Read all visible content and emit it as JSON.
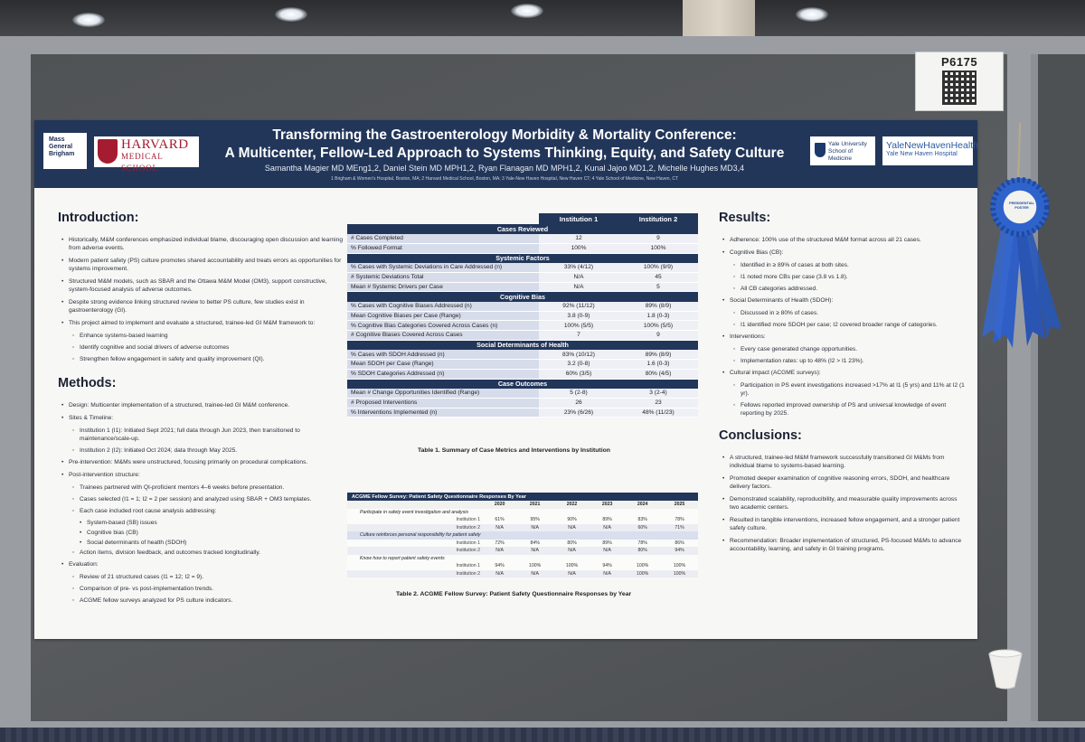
{
  "poster_number": "P6175",
  "logos": {
    "mgb": [
      "Mass",
      "General",
      "Brigham"
    ],
    "harvard_line1": "HARVARD",
    "harvard_line2": "MEDICAL SCHOOL",
    "yale_line1": "Yale University",
    "yale_line2": "School of Medicine",
    "ynhh_line1": "YaleNewHavenHealth",
    "ynhh_line2": "Yale New Haven Hospital"
  },
  "title_line1": "Transforming the Gastroenterology Morbidity & Mortality Conference:",
  "title_line2": "A Multicenter, Fellow-Led Approach to Systems Thinking, Equity, and Safety Culture",
  "authors": "Samantha Magier MD MEng1,2, Daniel Stein MD MPH1,2, Ryan Flanagan MD MPH1,2, Kunal Jajoo MD1,2, Michelle Hughes MD3,4",
  "affiliations": "1 Brigham & Women's Hospital, Boston, MA; 2 Harvard Medical School, Boston, MA; 3 Yale-New Haven Hospital, New Haven CT; 4 Yale School of Medicine, New Haven, CT",
  "introduction": {
    "heading": "Introduction:",
    "items": [
      {
        "level": 1,
        "text": "Historically, M&M conferences emphasized individual blame, discouraging open discussion and learning from adverse events."
      },
      {
        "level": 1,
        "text": "Modern patient safety (PS) culture promotes shared accountability and treats errors as opportunities for systems improvement."
      },
      {
        "level": 1,
        "text": "Structured M&M models, such as SBAR and the Ottawa M&M Model (OM3), support constructive, system-focused analysis of adverse outcomes."
      },
      {
        "level": 1,
        "text": "Despite strong evidence linking structured review to better PS culture, few studies exist in gastroenterology (GI)."
      },
      {
        "level": 1,
        "text": "This project aimed to implement and evaluate a structured, trainee-led GI M&M framework to:"
      },
      {
        "level": 2,
        "text": "Enhance systems-based learning"
      },
      {
        "level": 2,
        "text": "Identify cognitive and social drivers of adverse outcomes"
      },
      {
        "level": 2,
        "text": "Strengthen fellow engagement in safety and quality improvement (QI)."
      }
    ]
  },
  "methods": {
    "heading": "Methods:",
    "items": [
      {
        "level": 1,
        "text": "Design: Multicenter implementation of a structured, trainee-led GI M&M conference."
      },
      {
        "level": 1,
        "text": "Sites & Timeline:"
      },
      {
        "level": 2,
        "text": "Institution 1 (I1): Initiated Sept 2021; full data through Jun 2023, then transitioned to maintenance/scale-up."
      },
      {
        "level": 2,
        "text": "Institution 2 (I2): Initiated Oct 2024; data through May 2025."
      },
      {
        "level": 1,
        "text": "Pre-intervention: M&Ms were unstructured, focusing primarily on procedural complications."
      },
      {
        "level": 1,
        "text": "Post-intervention structure:"
      },
      {
        "level": 2,
        "text": "Trainees partnered with QI-proficient mentors 4–6 weeks before presentation."
      },
      {
        "level": 2,
        "text": "Cases selected (I1 = 1; I2 = 2 per session) and analyzed using SBAR + OM3 templates."
      },
      {
        "level": 2,
        "text": "Each case included root cause analysis addressing:"
      },
      {
        "level": 3,
        "text": "System-based (SB) issues"
      },
      {
        "level": 3,
        "text": "Cognitive bias (CB)"
      },
      {
        "level": 3,
        "text": "Social determinants of health (SDOH)"
      },
      {
        "level": 2,
        "text": "Action items, division feedback, and outcomes tracked longitudinally."
      },
      {
        "level": 1,
        "text": "Evaluation:"
      },
      {
        "level": 2,
        "text": "Review of 21 structured cases (I1 = 12; I2 = 9)."
      },
      {
        "level": 2,
        "text": "Comparison of pre- vs post-implementation trends."
      },
      {
        "level": 2,
        "text": "ACGME fellow surveys analyzed for PS culture indicators."
      }
    ]
  },
  "table1": {
    "col1": "Institution 1",
    "col2": "Institution 2",
    "caption": "Table 1.  Summary of Case Metrics and Interventions by Institution",
    "sections": [
      {
        "title": "Cases Reviewed",
        "rows": [
          [
            "# Cases Completed",
            "12",
            "9"
          ],
          [
            "% Followed Format",
            "100%",
            "100%"
          ]
        ]
      },
      {
        "title": "Systemic Factors",
        "rows": [
          [
            "% Cases with Systemic Deviations in Care Addressed (n)",
            "33% (4/12)",
            "100% (9/9)"
          ],
          [
            "# Systemic Deviations Total",
            "N/A",
            "45"
          ],
          [
            "Mean # Systemic Drivers per Case",
            "N/A",
            "5"
          ]
        ]
      },
      {
        "title": "Cognitive Bias",
        "rows": [
          [
            "% Cases with Cognitive Biases Addressed (n)",
            "92% (11/12)",
            "89% (8/9)"
          ],
          [
            "Mean Cognitive Biases per Case (Range)",
            "3.8 (0-9)",
            "1.8 (0-3)"
          ],
          [
            "% Cognitive Bias Categories Covered Across Cases (n)",
            "100% (5/5)",
            "100% (5/5)"
          ],
          [
            "# Cognitive Biases Covered Across Cases",
            "7",
            "9"
          ]
        ]
      },
      {
        "title": "Social Determinants of Health",
        "rows": [
          [
            "% Cases with SDOH Addressed (n)",
            "83% (10/12)",
            "89% (8/9)"
          ],
          [
            "Mean SDOH per Case (Range)",
            "3.2 (0-8)",
            "1.6 (0-3)"
          ],
          [
            "% SDOH Categories Addressed (n)",
            "60% (3/5)",
            "80% (4/5)"
          ]
        ]
      },
      {
        "title": "Case Outcomes",
        "rows": [
          [
            "Mean # Change Opportunities Identified (Range)",
            "5 (2-8)",
            "3 (2-4)"
          ],
          [
            "# Proposed Interventions",
            "26",
            "23"
          ],
          [
            "% Interventions Implemented (n)",
            "23% (6/26)",
            "48% (11/23)"
          ]
        ]
      }
    ]
  },
  "table2": {
    "title": "ACGME Fellow Survey: Patient Safety Questionnaire Responses By Year",
    "years": [
      "2020",
      "2021",
      "2022",
      "2023",
      "2024",
      "2025"
    ],
    "caption": "Table 2. ACGME Fellow Survey: Patient Safety Questionnaire Responses by Year",
    "groups": [
      {
        "question": "Participate in safety event investigation and analysis",
        "shaded": false,
        "rows": [
          [
            "Institution 1",
            "61%",
            "95%",
            "90%",
            "89%",
            "83%",
            "78%"
          ],
          [
            "Institution 2",
            "N/A",
            "N/A",
            "N/A",
            "N/A",
            "60%",
            "71%"
          ]
        ]
      },
      {
        "question": "Culture reinforces personal responsibility for patient safety",
        "shaded": true,
        "rows": [
          [
            "Institution 1",
            "72%",
            "84%",
            "80%",
            "89%",
            "78%",
            "86%"
          ],
          [
            "Institution 2",
            "N/A",
            "N/A",
            "N/A",
            "N/A",
            "80%",
            "94%"
          ]
        ]
      },
      {
        "question": "Know how to report patient safety events",
        "shaded": false,
        "rows": [
          [
            "Institution 1",
            "94%",
            "100%",
            "100%",
            "94%",
            "100%",
            "100%"
          ],
          [
            "Institution 2",
            "N/A",
            "N/A",
            "N/A",
            "N/A",
            "100%",
            "100%"
          ]
        ]
      }
    ]
  },
  "results": {
    "heading": "Results:",
    "items": [
      {
        "level": 1,
        "text": "Adherence: 100% use of the structured M&M format across all 21 cases."
      },
      {
        "level": 1,
        "text": "Cognitive Bias (CB):"
      },
      {
        "level": 2,
        "text": "Identified in ≥ 89% of cases at both sites."
      },
      {
        "level": 2,
        "text": "I1 noted more CBs per case (3.8 vs 1.8)."
      },
      {
        "level": 2,
        "text": "All CB categories addressed."
      },
      {
        "level": 1,
        "text": "Social Determinants of Health (SDOH):"
      },
      {
        "level": 2,
        "text": "Discussed in ≥ 80% of cases."
      },
      {
        "level": 2,
        "text": "I1 identified more SDOH per case; I2 covered broader range of categories."
      },
      {
        "level": 1,
        "text": "Interventions:"
      },
      {
        "level": 2,
        "text": "Every case generated change opportunities."
      },
      {
        "level": 2,
        "text": "Implementation rates: up to 48% (I2 > I1 23%)."
      },
      {
        "level": 1,
        "text": "Cultural impact (ACGME surveys):"
      },
      {
        "level": 2,
        "text": "Participation in PS event investigations increased >17% at I1 (5 yrs) and 11% at I2 (1 yr)."
      },
      {
        "level": 2,
        "text": "Fellows reported improved ownership of PS and universal knowledge of event reporting by 2025."
      }
    ]
  },
  "conclusions": {
    "heading": "Conclusions:",
    "items": [
      {
        "level": 1,
        "text": "A structured, trainee-led M&M framework successfully transitioned GI M&Ms from individual blame to systems-based learning."
      },
      {
        "level": 1,
        "text": "Promoted deeper examination of cognitive reasoning errors, SDOH, and healthcare delivery factors."
      },
      {
        "level": 1,
        "text": "Demonstrated scalability, reproducibility, and measurable quality improvements across two academic centers."
      },
      {
        "level": 1,
        "text": "Resulted in tangible interventions, increased fellow engagement, and a stronger patient safety culture."
      },
      {
        "level": 1,
        "text": "Recommendation: Broader implementation of structured, PS-focused M&Ms to advance accountability, learning, and safety in GI training programs."
      }
    ]
  },
  "ribbon_text": "PRESIDENTIAL POSTER",
  "colors": {
    "banner": "#22365a",
    "ribbon": "#2f5fc4",
    "table_light": "#d7dceb"
  }
}
